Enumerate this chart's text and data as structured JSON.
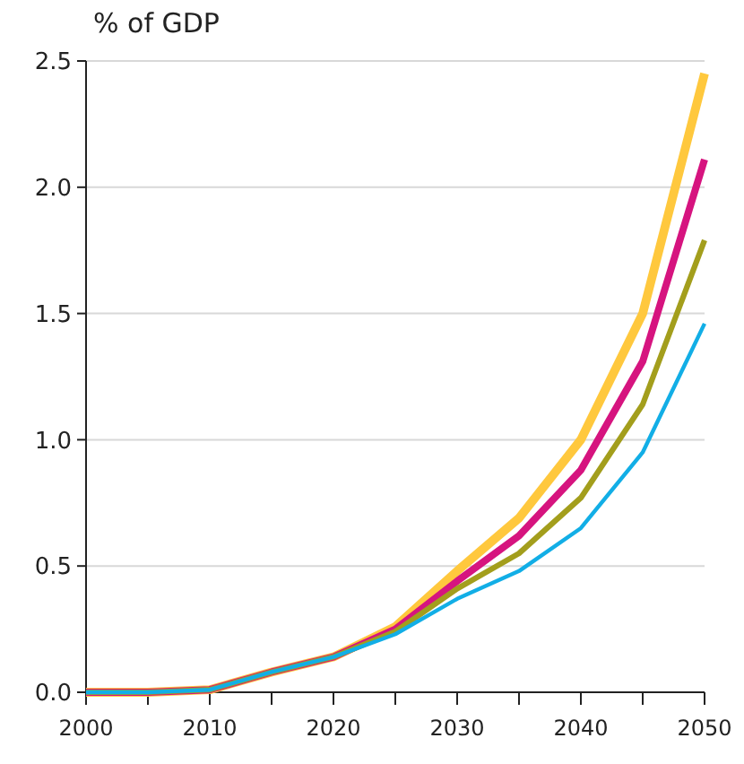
{
  "chart_data": {
    "type": "line",
    "ylabel": "% of GDP",
    "x": [
      2000,
      2005,
      2010,
      2015,
      2020,
      2025,
      2030,
      2035,
      2040,
      2045,
      2050
    ],
    "series": [
      {
        "color": "#ffc83d",
        "values": [
          0,
          0,
          0.01,
          0.08,
          0.14,
          0.26,
          0.48,
          0.69,
          1.0,
          1.5,
          2.45
        ]
      },
      {
        "color": "#d6147f",
        "values": [
          0,
          0,
          0.01,
          0.08,
          0.14,
          0.25,
          0.44,
          0.62,
          0.88,
          1.31,
          2.11
        ]
      },
      {
        "color": "#a39e1c",
        "values": [
          0,
          0,
          0.01,
          0.08,
          0.14,
          0.24,
          0.41,
          0.55,
          0.77,
          1.14,
          1.79
        ]
      },
      {
        "color": "#12aee6",
        "values": [
          0,
          0,
          0.01,
          0.08,
          0.14,
          0.23,
          0.37,
          0.48,
          0.65,
          0.95,
          1.46
        ]
      }
    ],
    "xlim": [
      2000,
      2050
    ],
    "xticks": [
      2000,
      {
        "value": 2005,
        "label": null
      },
      2010,
      {
        "value": 2015,
        "label": null
      },
      2020,
      {
        "value": 2025,
        "label": null
      },
      2030,
      {
        "value": 2035,
        "label": null
      },
      2040,
      {
        "value": 2045,
        "label": null
      },
      2050
    ],
    "ylim": [
      0,
      2.5
    ],
    "yticks": [
      {
        "value": 0,
        "label": "0.0"
      },
      {
        "value": 0.5,
        "label": "0.5"
      },
      {
        "value": 1,
        "label": "1.0"
      },
      {
        "value": 1.5,
        "label": "1.5"
      },
      {
        "value": 2,
        "label": "2.0"
      },
      {
        "value": 2.5,
        "label": "2.5"
      }
    ],
    "grid": "y",
    "line_style": "solid"
  }
}
